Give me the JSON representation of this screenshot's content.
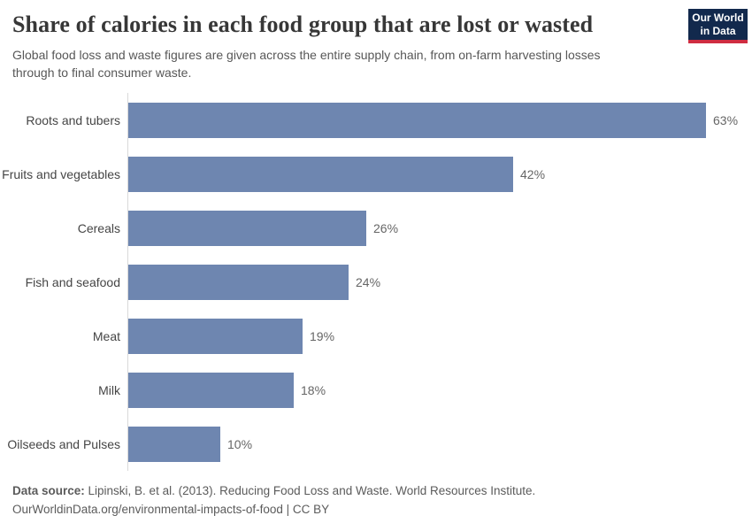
{
  "header": {
    "title": "Share of calories in each food group that are lost or wasted",
    "subtitle": "Global food loss and waste figures are given across the entire supply chain, from on-farm harvesting losses through to final consumer waste.",
    "logo": {
      "line1": "Our World",
      "line2": "in Data",
      "bg_color": "#12294d",
      "accent_color": "#cf2d41"
    }
  },
  "chart_data": {
    "type": "bar",
    "orientation": "horizontal",
    "title": "Share of calories in each food group that are lost or wasted",
    "categories": [
      "Roots and tubers",
      "Fruits and vegetables",
      "Cereals",
      "Fish and seafood",
      "Meat",
      "Milk",
      "Oilseeds and Pulses"
    ],
    "values": [
      63,
      42,
      26,
      24,
      19,
      18,
      10
    ],
    "value_labels": [
      "63%",
      "42%",
      "26%",
      "24%",
      "19%",
      "18%",
      "10%"
    ],
    "unit": "%",
    "xlim": [
      0,
      67
    ],
    "grid": false,
    "legend": "none",
    "bar_color": "#6e86b0",
    "value_label_color": "#666666",
    "category_label_color": "#454545",
    "axis_line_color": "#d9d9d9"
  },
  "footer": {
    "datasource_label": "Data source:",
    "datasource_text": " Lipinski, B. et al. (2013). Reducing Food Loss and Waste. World Resources Institute.",
    "link_line": "OurWorldinData.org/environmental-impacts-of-food | CC BY"
  }
}
